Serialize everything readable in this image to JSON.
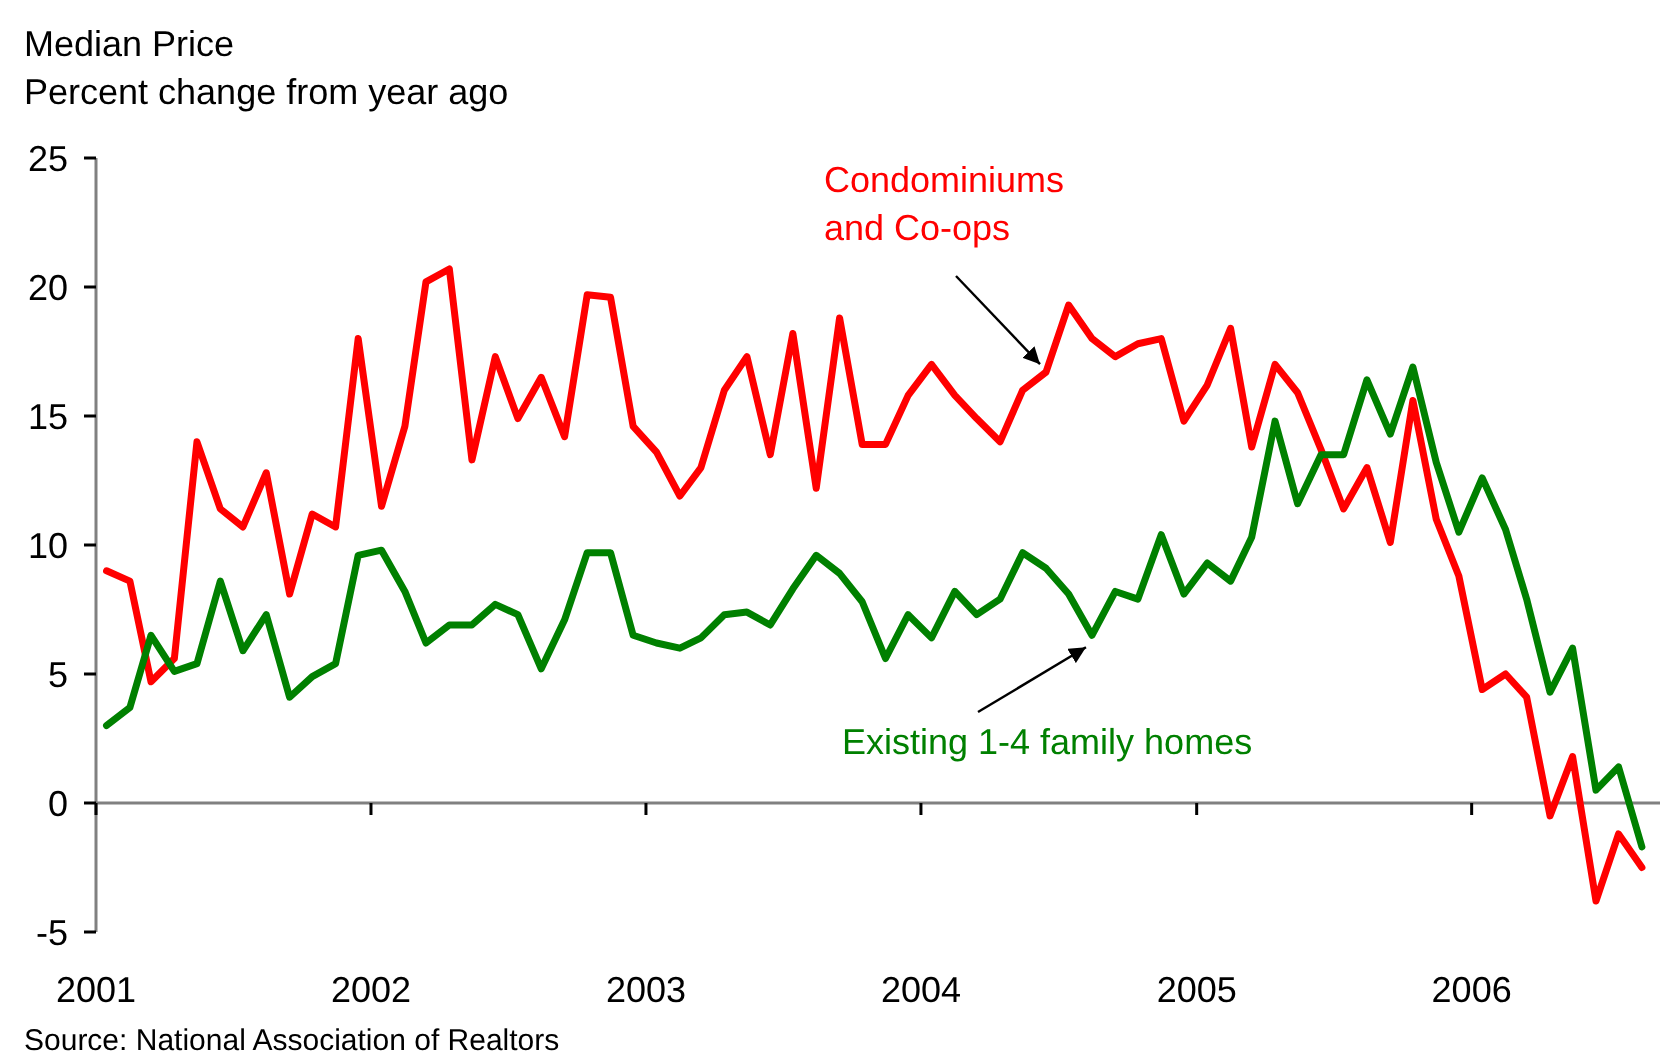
{
  "chart_data": {
    "type": "line",
    "title": "Median Price",
    "subtitle": "Percent change from year ago",
    "x": [
      "2001-01-15",
      "2001-02-15",
      "2001-03-15",
      "2001-04-15",
      "2001-05-15",
      "2001-06-15",
      "2001-07-15",
      "2001-08-15",
      "2001-09-15",
      "2001-10-15",
      "2001-11-15",
      "2001-12-15",
      "2002-01-15",
      "2002-02-15",
      "2002-03-15",
      "2002-04-15",
      "2002-05-15",
      "2002-06-15",
      "2002-07-15",
      "2002-08-15",
      "2002-09-15",
      "2002-10-15",
      "2002-11-15",
      "2002-12-15",
      "2003-01-15",
      "2003-02-15",
      "2003-03-15",
      "2003-04-15",
      "2003-05-15",
      "2003-06-15",
      "2003-07-15",
      "2003-08-15",
      "2003-09-15",
      "2003-10-15",
      "2003-11-15",
      "2003-12-15",
      "2004-01-15",
      "2004-02-15",
      "2004-03-15",
      "2004-04-15",
      "2004-05-15",
      "2004-06-15",
      "2004-07-15",
      "2004-08-15",
      "2004-09-15",
      "2004-10-15",
      "2004-11-15",
      "2004-12-15",
      "2005-01-15",
      "2005-02-15",
      "2005-03-15",
      "2005-04-15",
      "2005-05-15",
      "2005-06-15",
      "2005-07-15",
      "2005-08-15",
      "2005-09-15",
      "2005-10-15",
      "2005-11-15",
      "2005-12-15",
      "2006-01-15",
      "2006-02-15",
      "2006-03-15",
      "2006-04-15",
      "2006-05-15",
      "2006-06-15",
      "2006-07-15",
      "2006-08-15"
    ],
    "series": [
      {
        "name": "Condominiums and Co-ops",
        "color": "#ff0000",
        "values": [
          9.0,
          8.6,
          4.7,
          5.6,
          14.0,
          11.4,
          10.7,
          12.8,
          8.1,
          11.2,
          10.7,
          18.0,
          11.5,
          14.6,
          20.2,
          20.7,
          13.3,
          17.3,
          14.9,
          16.5,
          14.2,
          19.7,
          19.6,
          14.6,
          13.6,
          11.9,
          13.0,
          16.0,
          17.3,
          13.5,
          18.2,
          12.2,
          18.8,
          13.9,
          13.9,
          15.8,
          17.0,
          15.8,
          14.9,
          14.0,
          16.0,
          16.7,
          19.3,
          18.0,
          17.3,
          17.8,
          18.0,
          14.8,
          16.2,
          18.4,
          13.8,
          17.0,
          15.9,
          13.7,
          11.4,
          13.0,
          10.1,
          15.6,
          11.0,
          8.8,
          4.4,
          5.0,
          4.1,
          -0.5,
          1.8,
          -3.8,
          -1.2,
          -2.5
        ]
      },
      {
        "name": "Existing 1-4 family homes",
        "color": "#008000",
        "values": [
          3.0,
          3.7,
          6.5,
          5.1,
          5.4,
          8.6,
          5.9,
          7.3,
          4.1,
          4.9,
          5.4,
          9.6,
          9.8,
          8.2,
          6.2,
          6.9,
          6.9,
          7.7,
          7.3,
          5.2,
          7.1,
          9.7,
          9.7,
          6.5,
          6.2,
          6.0,
          6.4,
          7.3,
          7.4,
          6.9,
          8.3,
          9.6,
          8.9,
          7.8,
          5.6,
          7.3,
          6.4,
          8.2,
          7.3,
          7.9,
          9.7,
          9.1,
          8.1,
          6.5,
          8.2,
          7.9,
          10.4,
          8.1,
          9.3,
          8.6,
          10.3,
          14.8,
          11.6,
          13.5,
          13.5,
          16.4,
          14.3,
          16.9,
          13.2,
          10.5,
          12.6,
          10.6,
          7.9,
          4.3,
          6.0,
          0.5,
          1.4,
          -1.7
        ]
      }
    ],
    "xlim": [
      "2001-01-01",
      "2006-09-08"
    ],
    "xticks": [
      {
        "value": "2001-01-01",
        "label": "2001"
      },
      {
        "value": "2002-01-01",
        "label": "2002"
      },
      {
        "value": "2003-01-01",
        "label": "2003"
      },
      {
        "value": "2004-01-01",
        "label": "2004"
      },
      {
        "value": "2005-01-01",
        "label": "2005"
      },
      {
        "value": "2006-01-01",
        "label": "2006"
      }
    ],
    "ylim": [
      -5,
      25
    ],
    "yticks": [
      -5,
      0,
      5,
      10,
      15,
      20,
      25
    ],
    "marker": "none",
    "line_style": "solid",
    "annotations": [
      "Source: National Association of Realtors"
    ]
  }
}
